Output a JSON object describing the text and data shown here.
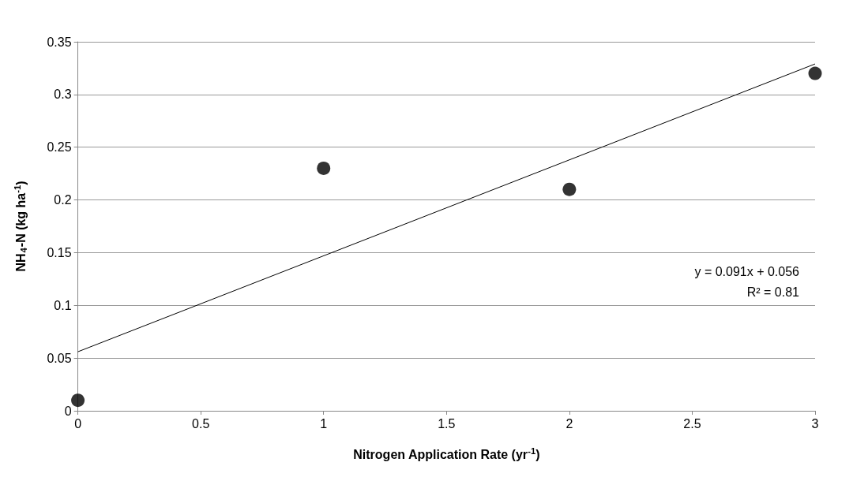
{
  "chart_data": {
    "type": "scatter",
    "xlabel": "Nitrogen Application Rate (yr$^{-1}$)",
    "ylabel": "NH$_{4}$-N (kg ha$^{-1}$)",
    "series": [
      {
        "color": "#000000",
        "x": [
          0,
          1,
          2,
          3
        ],
        "values": [
          0.01,
          0.23,
          0.21,
          0.32
        ],
        "marker": "circle"
      },
      {
        "type": "line",
        "color": "#000000",
        "x": [
          0,
          3
        ],
        "values": [
          0.056,
          0.329
        ],
        "marker": "none",
        "line_style": "solid"
      }
    ],
    "xlim": [
      0,
      3
    ],
    "xticks": [
      0,
      0.5,
      1,
      1.5,
      2,
      2.5,
      3
    ],
    "ylim": [
      0,
      0.35
    ],
    "yticks": [
      0,
      0.05,
      0.1,
      0.15,
      0.2,
      0.25,
      0.3,
      0.35
    ],
    "grid": "y",
    "annotations": [
      "y = 0.091x + 0.056",
      "R² = 0.81"
    ]
  }
}
